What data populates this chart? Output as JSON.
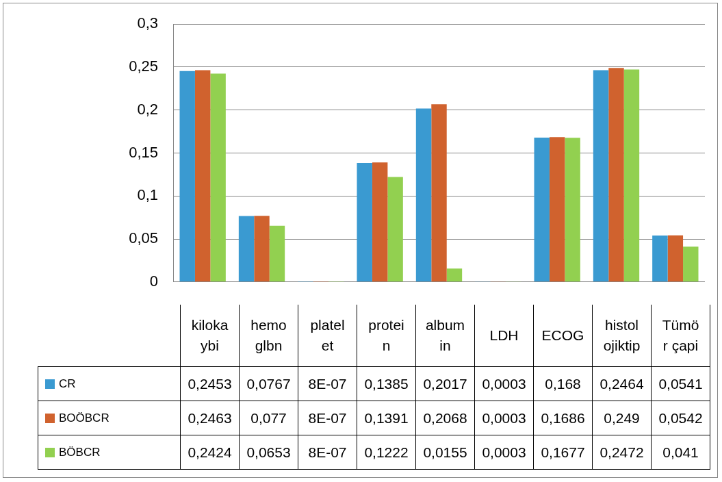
{
  "chart_data": {
    "type": "bar",
    "categories": [
      "kiloka\nybi",
      "hemo\nglbn",
      "platel\net",
      "protei\nn",
      "album\nin",
      "LDH",
      "ECOG",
      "histol\nojiktip",
      "Tümö\nr çapi"
    ],
    "series": [
      {
        "name": "CR",
        "color": "#3a9ad1",
        "values": [
          0.2453,
          0.0767,
          8e-07,
          0.1385,
          0.2017,
          0.0003,
          0.168,
          0.2464,
          0.0541
        ],
        "value_labels": [
          "0,2453",
          "0,0767",
          "8E-07",
          "0,1385",
          "0,2017",
          "0,0003",
          "0,168",
          "0,2464",
          "0,0541"
        ]
      },
      {
        "name": "BOÖBCR",
        "color": "#d0622e",
        "values": [
          0.2463,
          0.077,
          8e-07,
          0.1391,
          0.2068,
          0.0003,
          0.1686,
          0.249,
          0.0542
        ],
        "value_labels": [
          "0,2463",
          "0,077",
          "8E-07",
          "0,1391",
          "0,2068",
          "0,0003",
          "0,1686",
          "0,249",
          "0,0542"
        ]
      },
      {
        "name": "BÖBCR",
        "color": "#92d050",
        "values": [
          0.2424,
          0.0653,
          8e-07,
          0.1222,
          0.0155,
          0.0003,
          0.1677,
          0.2472,
          0.041
        ],
        "value_labels": [
          "0,2424",
          "0,0653",
          "8E-07",
          "0,1222",
          "0,0155",
          "0,0003",
          "0,1677",
          "0,2472",
          "0,041"
        ]
      }
    ],
    "ylim": [
      0,
      0.3
    ],
    "yticks": [
      {
        "value": 0,
        "label": "0"
      },
      {
        "value": 0.05,
        "label": "0,05"
      },
      {
        "value": 0.1,
        "label": "0,1"
      },
      {
        "value": 0.15,
        "label": "0,15"
      },
      {
        "value": 0.2,
        "label": "0,2"
      },
      {
        "value": 0.25,
        "label": "0,25"
      },
      {
        "value": 0.3,
        "label": "0,3"
      }
    ],
    "grid": "y",
    "legend": "bottom left"
  }
}
